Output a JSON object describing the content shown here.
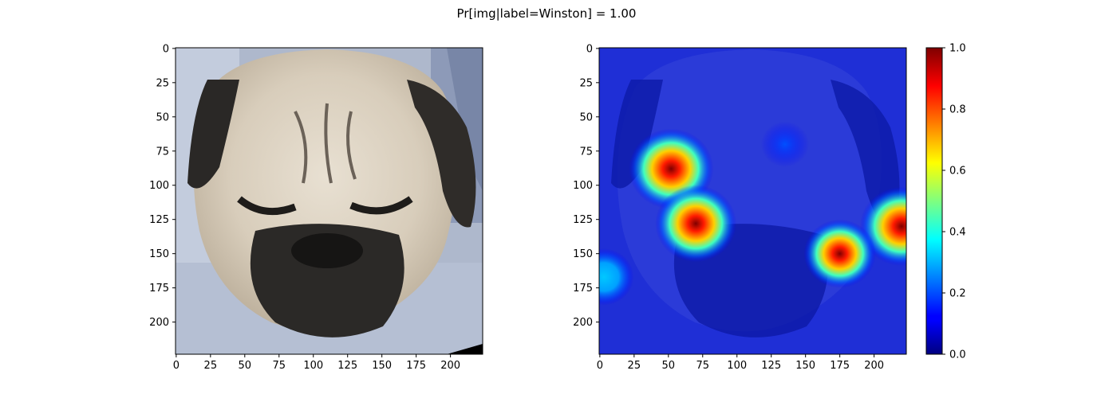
{
  "chart_data": {
    "title": "Pr[img|label=Winston] =  1.00",
    "panels": [
      {
        "type": "image",
        "name": "input-image",
        "description_subject": "pug",
        "xlim": [
          0,
          223
        ],
        "ylim": [
          223,
          0
        ],
        "xticks": [
          0,
          25,
          50,
          75,
          100,
          125,
          150,
          175,
          200
        ],
        "yticks": [
          0,
          25,
          50,
          75,
          100,
          125,
          150,
          175,
          200
        ]
      },
      {
        "type": "heatmap",
        "name": "saliency-overlay",
        "colormap": "jet",
        "xlim": [
          0,
          223
        ],
        "ylim": [
          223,
          0
        ],
        "xticks": [
          0,
          25,
          50,
          75,
          100,
          125,
          150,
          175,
          200
        ],
        "yticks": [
          0,
          25,
          50,
          75,
          100,
          125,
          150,
          175,
          200
        ],
        "hotspots": [
          {
            "x": 52,
            "y": 88,
            "value": 0.95
          },
          {
            "x": 70,
            "y": 128,
            "value": 0.88
          },
          {
            "x": 220,
            "y": 130,
            "value": 0.92
          },
          {
            "x": 175,
            "y": 150,
            "value": 0.7
          },
          {
            "x": 3,
            "y": 167,
            "value": 0.45
          },
          {
            "x": 135,
            "y": 70,
            "value": 0.22
          }
        ],
        "colorbar": {
          "range": [
            0.0,
            1.0
          ],
          "ticks": [
            0.0,
            0.2,
            0.4,
            0.6,
            0.8,
            1.0
          ],
          "tick_labels": [
            "0.0",
            "0.2",
            "0.4",
            "0.6",
            "0.8",
            "1.0"
          ]
        }
      }
    ]
  }
}
